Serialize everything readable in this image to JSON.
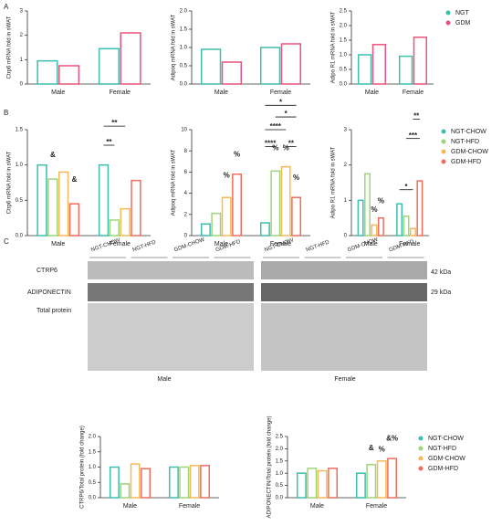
{
  "panels": [
    "A",
    "B",
    "C"
  ],
  "blot": {
    "groups_male": [
      "NGT-CHOW",
      "NGT-HFD",
      "GDM-CHOW",
      "GDM-HFD"
    ],
    "groups_female": [
      "NGT-CHOW",
      "NGT-HFD",
      "GDM-CHOW",
      "GDM-HFD"
    ],
    "rows": [
      "CTRP6",
      "ADIPONECTIN",
      "Total protein"
    ],
    "sizes": [
      "42 kDa",
      "29 kDa"
    ],
    "sexes": [
      "Male",
      "Female"
    ]
  },
  "chart_data": [
    {
      "type": "bar",
      "ylabel": "Ctrp6 mRNA fold in sWAT",
      "categories": [
        "Male",
        "Female"
      ],
      "ylim": [
        0,
        3
      ],
      "yticks": [
        0,
        1,
        2,
        3
      ],
      "series": [
        {
          "name": "NGT",
          "color": "#3cbfae",
          "values": [
            0.95,
            1.45
          ]
        },
        {
          "name": "GDM",
          "color": "#e8547a",
          "values": [
            0.75,
            2.1
          ]
        }
      ]
    },
    {
      "type": "bar",
      "ylabel": "Adipoq mRNA fold in sWAT",
      "categories": [
        "Male",
        "Female"
      ],
      "ylim": [
        0,
        2
      ],
      "yticks": [
        {
          "value": 0,
          "label": "0.0"
        },
        {
          "value": 0.5,
          "label": "0.5"
        },
        {
          "value": 1,
          "label": "1.0"
        },
        {
          "value": 1.5,
          "label": "1.5"
        },
        {
          "value": 2,
          "label": "2.0"
        }
      ],
      "series": [
        {
          "name": "NGT",
          "color": "#3cbfae",
          "values": [
            0.95,
            1.0
          ]
        },
        {
          "name": "GDM",
          "color": "#e8547a",
          "values": [
            0.6,
            1.1
          ]
        }
      ]
    },
    {
      "type": "bar",
      "ylabel": "Adipo R1 mRNA fold in sWAT",
      "categories": [
        "Male",
        "Female"
      ],
      "ylim": [
        0,
        2.5
      ],
      "legend": "right",
      "yticks": [
        {
          "value": 0,
          "label": "0.0"
        },
        {
          "value": 0.5,
          "label": "0.5"
        },
        {
          "value": 1,
          "label": "1.0"
        },
        {
          "value": 1.5,
          "label": "1.5"
        },
        {
          "value": 2,
          "label": "2.0"
        },
        {
          "value": 2.5,
          "label": "2.5"
        }
      ],
      "series": [
        {
          "name": "NGT",
          "color": "#3cbfae",
          "values": [
            1.0,
            0.95
          ]
        },
        {
          "name": "GDM",
          "color": "#e8547a",
          "values": [
            1.35,
            1.6
          ]
        }
      ]
    },
    {
      "type": "bar",
      "ylabel": "Ctrp6 mRNA fold in sWAT",
      "categories": [
        "Male",
        "Female"
      ],
      "ylim": [
        0,
        1.5
      ],
      "yticks": [
        {
          "value": 0,
          "label": "0.0"
        },
        {
          "value": 0.5,
          "label": "0.5"
        },
        {
          "value": 1,
          "label": "1.0"
        },
        {
          "value": 1.5,
          "label": "1.5"
        }
      ],
      "annotations": [
        "&",
        "&",
        "**",
        "**"
      ],
      "series": [
        {
          "name": "NGT-CHOW",
          "color": "#3cbfae",
          "values": [
            1.0,
            1.0
          ]
        },
        {
          "name": "NGT-HFD",
          "color": "#9ed47a",
          "values": [
            0.8,
            0.22
          ]
        },
        {
          "name": "GDM-CHOW",
          "color": "#f7b955",
          "values": [
            0.9,
            0.38
          ]
        },
        {
          "name": "GDM-HFD",
          "color": "#ee6e5e",
          "values": [
            0.45,
            0.78
          ]
        }
      ]
    },
    {
      "type": "bar",
      "ylabel": "Adipoq mRNA fold in sWAT",
      "categories": [
        "Male",
        "Female"
      ],
      "ylim": [
        0,
        10
      ],
      "yticks": [
        0,
        2,
        4,
        6,
        8,
        10
      ],
      "annotations": [
        "%",
        "%",
        "%",
        "%",
        "%",
        "*",
        "*",
        "****",
        "****",
        "**"
      ],
      "series": [
        {
          "name": "NGT-CHOW",
          "color": "#3cbfae",
          "values": [
            1.1,
            1.2
          ]
        },
        {
          "name": "NGT-HFD",
          "color": "#9ed47a",
          "values": [
            2.1,
            6.1
          ]
        },
        {
          "name": "GDM-CHOW",
          "color": "#f7b955",
          "values": [
            3.6,
            6.5
          ]
        },
        {
          "name": "GDM-HFD",
          "color": "#ee6e5e",
          "values": [
            5.8,
            3.6
          ]
        }
      ]
    },
    {
      "type": "bar",
      "ylabel": "Adipo R1 mRNA fold in sWAT",
      "categories": [
        "Male",
        "Female"
      ],
      "ylim": [
        0,
        3
      ],
      "yticks": [
        0,
        1,
        2,
        3
      ],
      "legend": "right",
      "annotations": [
        "%",
        "%",
        "*",
        "**",
        "***"
      ],
      "series": [
        {
          "name": "NGT-CHOW",
          "color": "#3cbfae",
          "values": [
            1.0,
            0.9
          ]
        },
        {
          "name": "NGT-HFD",
          "color": "#9ed47a",
          "values": [
            1.75,
            0.55
          ]
        },
        {
          "name": "GDM-CHOW",
          "color": "#f7b955",
          "values": [
            0.3,
            0.2
          ]
        },
        {
          "name": "GDM-HFD",
          "color": "#ee6e5e",
          "values": [
            0.5,
            1.55
          ]
        }
      ]
    },
    {
      "type": "bar",
      "ylabel": "CTRP6/Total protein (fold change)",
      "categories": [
        "Male",
        "Female"
      ],
      "ylim": [
        0,
        2
      ],
      "yticks": [
        {
          "value": 0,
          "label": "0.0"
        },
        {
          "value": 0.5,
          "label": "0.5"
        },
        {
          "value": 1,
          "label": "1.0"
        },
        {
          "value": 1.5,
          "label": "1.5"
        },
        {
          "value": 2,
          "label": "2.0"
        }
      ],
      "series": [
        {
          "name": "NGT-CHOW",
          "color": "#3cbfae",
          "values": [
            1.0,
            1.0
          ]
        },
        {
          "name": "NGT-HFD",
          "color": "#9ed47a",
          "values": [
            0.45,
            1.0
          ]
        },
        {
          "name": "GDM-CHOW",
          "color": "#f7b955",
          "values": [
            1.1,
            1.05
          ]
        },
        {
          "name": "GDM-HFD",
          "color": "#ee6e5e",
          "values": [
            0.95,
            1.05
          ]
        }
      ]
    },
    {
      "type": "bar",
      "ylabel": "ADIPONECTIN/Total protein (fold change)",
      "categories": [
        "Male",
        "Female"
      ],
      "ylim": [
        0,
        2.5
      ],
      "legend": "right",
      "yticks": [
        {
          "value": 0,
          "label": "0.0"
        },
        {
          "value": 0.5,
          "label": "0.5"
        },
        {
          "value": 1,
          "label": "1.0"
        },
        {
          "value": 1.5,
          "label": "1.5"
        },
        {
          "value": 2,
          "label": "2.0"
        },
        {
          "value": 2.5,
          "label": "2.5"
        }
      ],
      "annotations": [
        "&",
        "%",
        "&%"
      ],
      "series": [
        {
          "name": "NGT-CHOW",
          "color": "#3cbfae",
          "values": [
            1.0,
            1.0
          ]
        },
        {
          "name": "NGT-HFD",
          "color": "#9ed47a",
          "values": [
            1.2,
            1.35
          ]
        },
        {
          "name": "GDM-CHOW",
          "color": "#f7b955",
          "values": [
            1.1,
            1.5
          ]
        },
        {
          "name": "GDM-HFD",
          "color": "#ee6e5e",
          "values": [
            1.2,
            1.6
          ]
        }
      ]
    }
  ]
}
